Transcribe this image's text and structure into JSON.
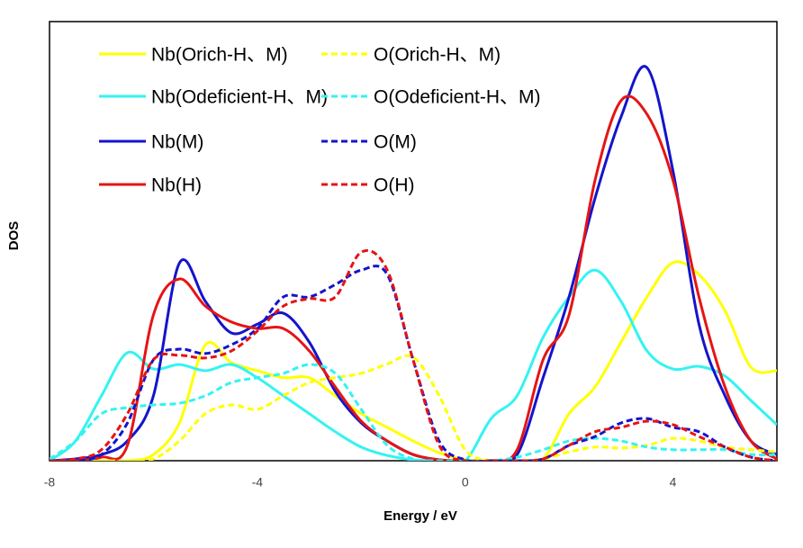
{
  "chart_data": {
    "type": "line",
    "x_label": "Energy / eV",
    "y_label": "DOS",
    "x": [
      -8,
      -7.5,
      -7,
      -6.5,
      -6,
      -5.5,
      -5,
      -4.5,
      -4,
      -3.5,
      -3,
      -2.5,
      -2,
      -1.5,
      -1,
      -0.5,
      0,
      0.5,
      1,
      1.5,
      2,
      2.5,
      3,
      3.5,
      4,
      4.5,
      5,
      5.5,
      6
    ],
    "xlim": [
      -8,
      6
    ],
    "xticks": [
      -8,
      -4,
      0,
      4
    ],
    "ylim": [
      0,
      100
    ],
    "series": [
      {
        "name": "Nb(Orich-H、M)",
        "color": "#ffff00",
        "dashed": false,
        "values": [
          0,
          0,
          0,
          0,
          1.4,
          8.6,
          26.4,
          22.3,
          20.5,
          18.9,
          18.9,
          14.8,
          10.7,
          7.6,
          4.5,
          1.8,
          0.2,
          0,
          0,
          0.4,
          10.7,
          16.8,
          27,
          37.3,
          45.1,
          42.4,
          34.2,
          21.3,
          20.5
        ]
      },
      {
        "name": "Nb(Odeficient-H、M)",
        "color": "#33f3f3",
        "dashed": false,
        "values": [
          0,
          4.5,
          14.8,
          24.6,
          20.9,
          21.9,
          20.5,
          21.9,
          18.9,
          14.8,
          10.7,
          6.6,
          3.1,
          1.2,
          0.2,
          0,
          0,
          9.6,
          14.8,
          28.1,
          37.3,
          43.4,
          36.3,
          25,
          20.9,
          21.5,
          19.3,
          13.7,
          8.2
        ]
      },
      {
        "name": "Nb(M)",
        "color": "#1414cc",
        "dashed": false,
        "values": [
          0,
          0.4,
          1.4,
          4.5,
          14.8,
          45,
          36.3,
          29.1,
          31.1,
          33.6,
          27,
          15.8,
          8.6,
          4.5,
          1.4,
          0.2,
          0,
          0,
          1.4,
          18.9,
          37.3,
          59.8,
          78.3,
          89.5,
          66,
          31.1,
          14.8,
          4.5,
          1.4
        ]
      },
      {
        "name": "Nb(H)",
        "color": "#e61414",
        "dashed": false,
        "values": [
          0,
          0,
          0.8,
          3.5,
          33.2,
          41.4,
          35.2,
          31.6,
          30.1,
          30.1,
          25,
          16.8,
          9,
          4.5,
          1.4,
          0.2,
          0,
          0,
          2.5,
          23,
          33.2,
          63.9,
          82,
          78.9,
          63.9,
          37.3,
          16.8,
          4.5,
          0.4
        ]
      },
      {
        "name": "O(Orich-H、M)",
        "color": "#ffff00",
        "dashed": true,
        "values": [
          0,
          0,
          0,
          0,
          0.4,
          4.5,
          10.7,
          12.7,
          11.7,
          14.8,
          17.8,
          18.9,
          19.9,
          22,
          23.6,
          14.8,
          2.5,
          0,
          0,
          0.4,
          2,
          3.1,
          2.9,
          3.5,
          5.1,
          4.5,
          3.1,
          2.5,
          2
        ]
      },
      {
        "name": "O(Odeficient-H、M)",
        "color": "#33f3f3",
        "dashed": true,
        "values": [
          0.4,
          4.5,
          10.7,
          12.1,
          12.7,
          13.1,
          14.8,
          17.8,
          18.9,
          19.9,
          21.9,
          19.9,
          11.7,
          3.5,
          0.4,
          0,
          0,
          0,
          0.8,
          2.5,
          4.5,
          5.1,
          4.5,
          3.1,
          2.5,
          2.5,
          2.5,
          1.4,
          1.4
        ]
      },
      {
        "name": "O(M)",
        "color": "#1414cc",
        "dashed": true,
        "values": [
          0,
          0,
          1.4,
          8.6,
          23,
          25.4,
          24.4,
          26.4,
          30.1,
          37.3,
          37.3,
          40.1,
          43.4,
          42.4,
          22.9,
          4.5,
          0.2,
          0,
          0,
          0.4,
          3.5,
          5.5,
          8.6,
          9.6,
          7.6,
          6.6,
          3.1,
          0.8,
          0
        ]
      },
      {
        "name": "O(H)",
        "color": "#e61414",
        "dashed": true,
        "values": [
          0,
          0.4,
          2.5,
          10.7,
          23,
          24,
          23.4,
          25,
          29.5,
          35.2,
          36.9,
          37.3,
          47.5,
          43.4,
          22.9,
          3.5,
          0,
          0,
          0,
          0.4,
          3.5,
          6.6,
          7.6,
          9,
          8.2,
          5.5,
          3.1,
          0.8,
          0
        ]
      }
    ]
  }
}
